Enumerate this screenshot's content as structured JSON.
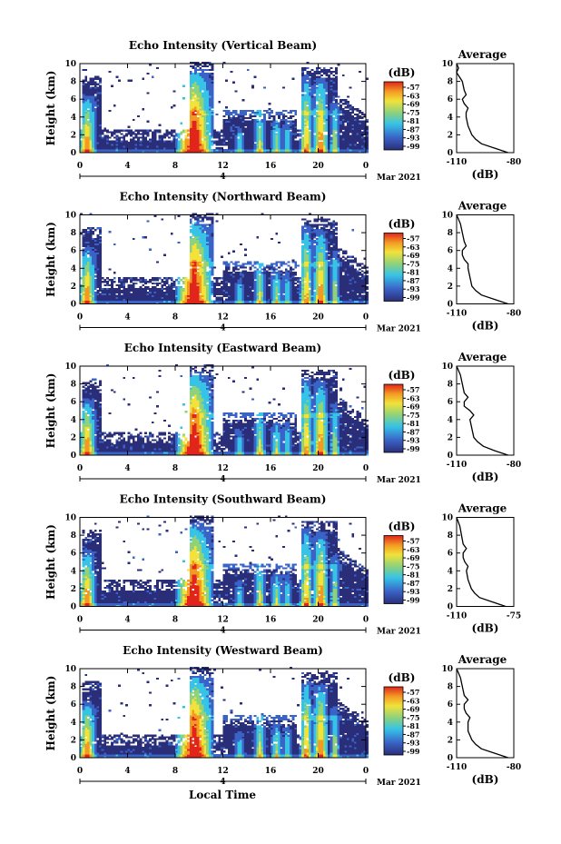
{
  "figure": {
    "xlabel": "Local Time",
    "date_label": "Mar 2021",
    "day_marker": "4",
    "colorbar_unit": "(dB)",
    "colorbar_ticks": [
      "-57",
      "-63",
      "-69",
      "-75",
      "-81",
      "-87",
      "-93",
      "-99"
    ],
    "avg_title": "Average",
    "avg_xlabel": "(dB)",
    "colors": {
      "white": "#ffffff",
      "darkblue": "#2a2e78",
      "blue": "#3a63c7",
      "cyan": "#36c3e6",
      "green": "#8fd27a",
      "yellow": "#f2e23a",
      "orange": "#f39a23",
      "red": "#e1251b"
    }
  },
  "chart_data": [
    {
      "type": "heatmap",
      "title": "Echo Intensity (Vertical Beam)",
      "ylabel": "Height (km)",
      "xlim": [
        0,
        24
      ],
      "ylim": [
        0,
        10
      ],
      "x_ticks": [
        "0",
        "4",
        "8",
        "12",
        "16",
        "20",
        "0"
      ],
      "y_ticks": [
        "0",
        "2",
        "4",
        "6",
        "8",
        "10"
      ],
      "clim": [
        -99,
        -57
      ],
      "avg_profile": {
        "xlim": [
          -110,
          -80
        ],
        "x_ticks": [
          "-110",
          "-80"
        ],
        "y_ticks": [
          "0",
          "2",
          "4",
          "6",
          "8",
          "10"
        ],
        "height_km": [
          0,
          0.5,
          1,
          1.5,
          2,
          3,
          4,
          4.5,
          5,
          5.5,
          6,
          6.5,
          7,
          8,
          9,
          9.5,
          10
        ],
        "db": [
          -83,
          -90,
          -97,
          -100,
          -102,
          -104,
          -105,
          -105,
          -104,
          -106,
          -107,
          -105,
          -106,
          -107,
          -110,
          -109,
          -110
        ]
      }
    },
    {
      "type": "heatmap",
      "title": "Echo Intensity (Northward Beam)",
      "ylabel": "Height (km)",
      "xlim": [
        0,
        24
      ],
      "ylim": [
        0,
        10
      ],
      "x_ticks": [
        "0",
        "4",
        "8",
        "12",
        "16",
        "20",
        "0"
      ],
      "y_ticks": [
        "0",
        "2",
        "4",
        "6",
        "8",
        "10"
      ],
      "clim": [
        -99,
        -57
      ],
      "avg_profile": {
        "xlim": [
          -110,
          -80
        ],
        "x_ticks": [
          "-110",
          "-80"
        ],
        "y_ticks": [
          "0",
          "2",
          "4",
          "6",
          "8",
          "10"
        ],
        "height_km": [
          0,
          0.5,
          1,
          1.5,
          2,
          3,
          4,
          4.5,
          5,
          5.5,
          6,
          6.5,
          7,
          8,
          9,
          9.5,
          10
        ],
        "db": [
          -83,
          -90,
          -97,
          -100,
          -102,
          -103,
          -104,
          -104,
          -106,
          -107,
          -107,
          -105,
          -106,
          -107,
          -108,
          -109,
          -110
        ]
      }
    },
    {
      "type": "heatmap",
      "title": "Echo Intensity (Eastward Beam)",
      "ylabel": "Height (km)",
      "xlim": [
        0,
        24
      ],
      "ylim": [
        0,
        10
      ],
      "x_ticks": [
        "0",
        "4",
        "8",
        "12",
        "16",
        "20",
        "0"
      ],
      "y_ticks": [
        "0",
        "2",
        "4",
        "6",
        "8",
        "10"
      ],
      "clim": [
        -99,
        -57
      ],
      "avg_profile": {
        "xlim": [
          -110,
          -80
        ],
        "x_ticks": [
          "-110",
          "-80"
        ],
        "y_ticks": [
          "0",
          "2",
          "4",
          "6",
          "8",
          "10"
        ],
        "height_km": [
          0,
          0.5,
          1,
          1.5,
          2,
          3,
          4,
          4.5,
          5,
          5.5,
          6,
          6.5,
          7,
          8,
          9,
          9.5,
          10
        ],
        "db": [
          -83,
          -90,
          -96,
          -99,
          -101,
          -102,
          -103,
          -101,
          -103,
          -106,
          -106,
          -104,
          -106,
          -107,
          -108,
          -109,
          -110
        ]
      }
    },
    {
      "type": "heatmap",
      "title": "Echo Intensity (Southward Beam)",
      "ylabel": "Height (km)",
      "xlim": [
        0,
        24
      ],
      "ylim": [
        0,
        10
      ],
      "x_ticks": [
        "0",
        "4",
        "8",
        "12",
        "16",
        "20",
        "0"
      ],
      "y_ticks": [
        "0",
        "2",
        "4",
        "6",
        "8",
        "10"
      ],
      "clim": [
        -99,
        -57
      ],
      "avg_profile": {
        "xlim": [
          -110,
          -75
        ],
        "x_ticks": [
          "-110",
          "-75"
        ],
        "y_ticks": [
          "0",
          "2",
          "4",
          "6",
          "8",
          "10"
        ],
        "height_km": [
          0,
          0.5,
          1,
          1.5,
          2,
          3,
          4,
          4.5,
          5,
          5.5,
          6,
          6.5,
          7,
          8,
          9,
          9.5,
          10
        ],
        "db": [
          -80,
          -88,
          -96,
          -99,
          -101,
          -103,
          -104,
          -103,
          -105,
          -106,
          -106,
          -104,
          -106,
          -107,
          -108,
          -109,
          -110
        ]
      }
    },
    {
      "type": "heatmap",
      "title": "Echo Intensity (Westward Beam)",
      "ylabel": "Height (km)",
      "xlim": [
        0,
        24
      ],
      "ylim": [
        0,
        10
      ],
      "x_ticks": [
        "0",
        "4",
        "8",
        "12",
        "16",
        "20",
        "0"
      ],
      "y_ticks": [
        "0",
        "2",
        "4",
        "6",
        "8",
        "10"
      ],
      "clim": [
        -99,
        -57
      ],
      "avg_profile": {
        "xlim": [
          -110,
          -80
        ],
        "x_ticks": [
          "-110",
          "-80"
        ],
        "y_ticks": [
          "0",
          "2",
          "4",
          "6",
          "8",
          "10"
        ],
        "height_km": [
          0,
          0.5,
          1,
          1.5,
          2,
          3,
          4,
          4.5,
          5,
          5.5,
          6,
          6.5,
          7,
          8,
          9,
          9.5,
          10
        ],
        "db": [
          -83,
          -90,
          -97,
          -100,
          -102,
          -104,
          -104,
          -103,
          -105,
          -106,
          -106,
          -104,
          -106,
          -107,
          -108,
          -109,
          -110
        ]
      }
    }
  ]
}
